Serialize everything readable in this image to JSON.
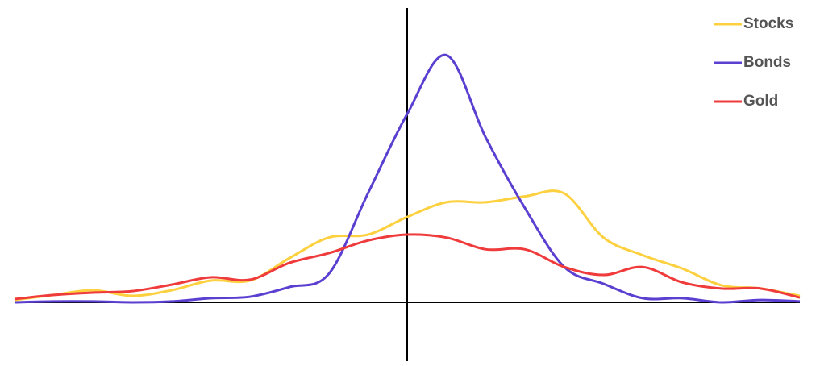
{
  "chart_data": {
    "type": "line",
    "x": [
      -50,
      -45,
      -40,
      -35,
      -30,
      -25,
      -20,
      -15,
      -10,
      -5,
      0,
      5,
      10,
      15,
      20,
      25,
      30,
      35,
      40,
      45,
      50
    ],
    "series": [
      {
        "name": "Stocks",
        "color": "#fcd03f",
        "values": [
          0.8,
          2.5,
          4.1,
          2.2,
          4.1,
          7.4,
          7.4,
          15,
          22,
          23,
          29,
          34,
          34,
          36,
          37,
          22,
          16,
          11.5,
          5.8,
          4.7,
          2.2
        ]
      },
      {
        "name": "Bonds",
        "color": "#5b3fd0",
        "values": [
          0,
          0.3,
          0.3,
          0,
          0.3,
          1.4,
          1.9,
          5.2,
          9.6,
          37,
          64,
          84,
          56,
          32,
          12,
          6.3,
          1.4,
          1.4,
          0,
          0.8,
          0.3
        ]
      },
      {
        "name": "Gold",
        "color": "#ef3b3b",
        "values": [
          1.1,
          2.5,
          3.3,
          3.8,
          6,
          8.5,
          7.7,
          13.4,
          16.7,
          21,
          23,
          22,
          18,
          18,
          12,
          9.3,
          12,
          6.8,
          4.7,
          4.7,
          1.6
        ]
      }
    ],
    "xlim": [
      -50,
      50
    ],
    "ylim": [
      -20,
      100
    ],
    "legend": "top-right"
  }
}
